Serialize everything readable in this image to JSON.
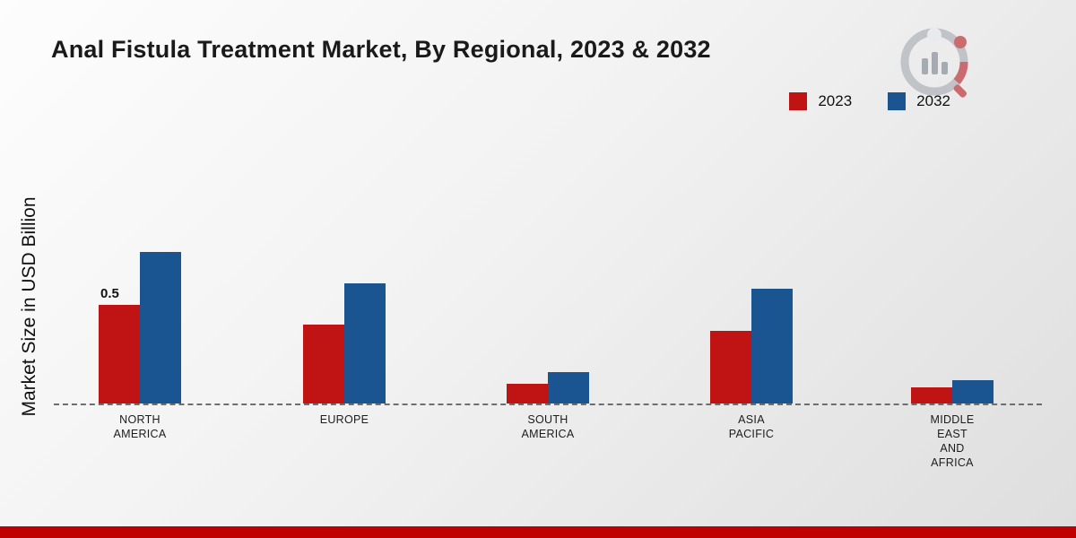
{
  "title": "Anal Fistula Treatment Market, By Regional, 2023 & 2032",
  "ylabel": "Market Size in USD Billion",
  "legend": {
    "items": [
      {
        "label": "2023",
        "color": "#c01414"
      },
      {
        "label": "2032",
        "color": "#1a5591"
      }
    ]
  },
  "colors": {
    "bar_2023": "#c01414",
    "bar_2032": "#1a5591",
    "bottom_strip": "#c00000",
    "baseline": "#6e6e6e"
  },
  "chart_data": {
    "type": "bar",
    "categories": [
      "NORTH\nAMERICA",
      "EUROPE",
      "SOUTH\nAMERICA",
      "ASIA\nPACIFIC",
      "MIDDLE\nEAST\nAND\nAFRICA"
    ],
    "series": [
      {
        "name": "2023",
        "color": "#c01414",
        "values": [
          0.5,
          0.4,
          0.1,
          0.37,
          0.08
        ]
      },
      {
        "name": "2032",
        "color": "#1a5591",
        "values": [
          0.77,
          0.61,
          0.16,
          0.58,
          0.12
        ]
      }
    ],
    "title": "Anal Fistula Treatment Market, By Regional, 2023 & 2032",
    "xlabel": "",
    "ylabel": "Market Size in USD Billion",
    "ylim": [
      0,
      1
    ],
    "grid": false,
    "legend_position": "top-right",
    "annotations": [
      {
        "series": "2023",
        "category_index": 0,
        "text": "0.5"
      }
    ]
  }
}
